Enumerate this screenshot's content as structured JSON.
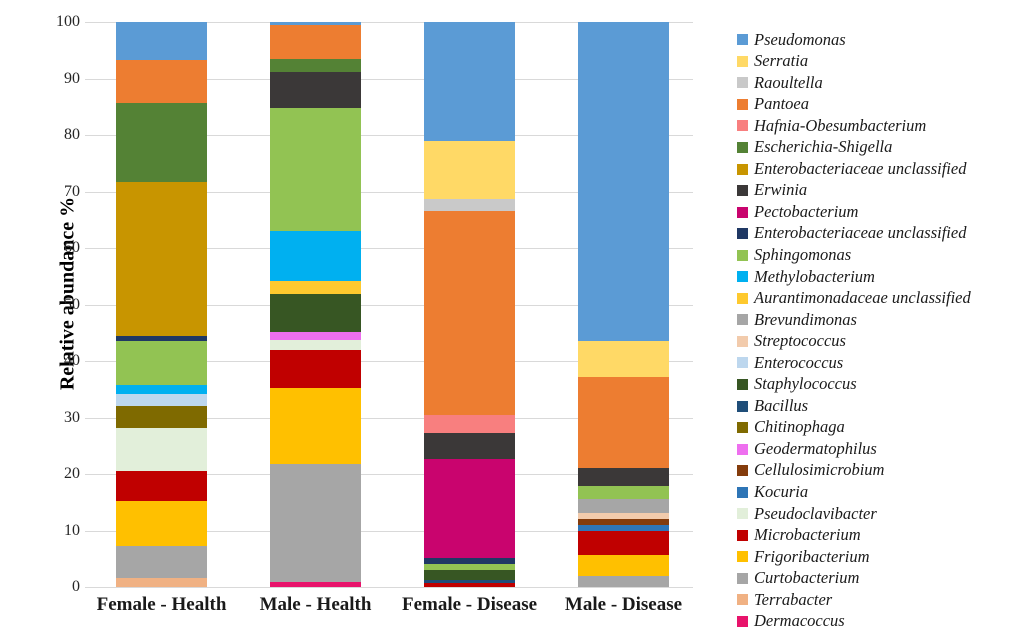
{
  "chart_data": {
    "type": "bar",
    "stacked": true,
    "title": "",
    "xlabel": "",
    "ylabel": "Relative abundance %",
    "ylim": [
      0,
      100
    ],
    "ytick_step": 10,
    "ytick_labels": [
      "0",
      "10",
      "20",
      "30",
      "40",
      "50",
      "60",
      "70",
      "80",
      "90",
      "100"
    ],
    "grid": true,
    "gridline_color": "#d9d9d9",
    "legend_position": "right",
    "categories": [
      "Female - Health",
      "Male - Health",
      "Female - Disease",
      "Male - Disease"
    ],
    "series": [
      {
        "name": "Pseudomonas",
        "color": "#5B9BD5",
        "values": [
          6.7,
          0.6,
          21.1,
          56.4
        ]
      },
      {
        "name": "Serratia",
        "color": "#FFD966",
        "values": [
          0,
          0,
          10.3,
          6.5
        ]
      },
      {
        "name": "Raoultella",
        "color": "#C9C9C9",
        "values": [
          0,
          0,
          2.1,
          0
        ]
      },
      {
        "name": "Pantoea",
        "color": "#ED7D31",
        "values": [
          7.6,
          5.9,
          36.0,
          16.1
        ]
      },
      {
        "name": "Hafnia-Obesumbacterium",
        "color": "#F87F7F",
        "values": [
          0,
          0,
          3.3,
          0
        ]
      },
      {
        "name": "Escherichia-Shigella",
        "color": "#548235",
        "values": [
          14.0,
          2.3,
          0,
          0
        ]
      },
      {
        "name": "Enterobacteriaceae unclassified",
        "color": "#C89500",
        "values": [
          27.2,
          0,
          0,
          0
        ]
      },
      {
        "name": "Erwinia",
        "color": "#3B3838",
        "values": [
          0,
          6.5,
          4.6,
          3.1
        ]
      },
      {
        "name": "Pectobacterium",
        "color": "#C9046E",
        "values": [
          0,
          0,
          17.5,
          0
        ]
      },
      {
        "name": "Enterobacteriaceae unclassified",
        "color": "#1F3864",
        "values": [
          0.9,
          0,
          1.0,
          0
        ]
      },
      {
        "name": "Sphingomonas",
        "color": "#92C353",
        "values": [
          7.8,
          21.7,
          1.1,
          2.4
        ]
      },
      {
        "name": "Methylobacterium",
        "color": "#00B0F0",
        "values": [
          1.6,
          8.9,
          0,
          0
        ]
      },
      {
        "name": "Aurantimonadaceae unclassified",
        "color": "#FEC92E",
        "values": [
          0,
          2.2,
          0,
          0
        ]
      },
      {
        "name": "Brevundimonas",
        "color": "#A6A6A6",
        "values": [
          0,
          0,
          0,
          2.4
        ]
      },
      {
        "name": "Streptococcus",
        "color": "#F2CBAC",
        "values": [
          0,
          0,
          0,
          1.0
        ]
      },
      {
        "name": "Enterococcus",
        "color": "#BDD7EE",
        "values": [
          2.2,
          0,
          0,
          0
        ]
      },
      {
        "name": "Staphylococcus",
        "color": "#375623",
        "values": [
          0,
          6.8,
          1.8,
          0
        ]
      },
      {
        "name": "Bacillus",
        "color": "#1F4E79",
        "values": [
          0,
          0,
          0.5,
          0
        ]
      },
      {
        "name": "Chitinophaga",
        "color": "#7F6A00",
        "values": [
          3.9,
          0,
          0,
          0
        ]
      },
      {
        "name": "Geodermatophilus",
        "color": "#EE6FEF",
        "values": [
          0,
          1.3,
          0,
          0
        ]
      },
      {
        "name": "Cellulosimicrobium",
        "color": "#843C0C",
        "values": [
          0,
          0,
          0,
          1.1
        ]
      },
      {
        "name": "Kocuria",
        "color": "#2E75B6",
        "values": [
          0,
          0,
          0,
          1.0
        ]
      },
      {
        "name": "Pseudoclavibacter",
        "color": "#E2EFDA",
        "values": [
          7.6,
          1.8,
          0,
          0
        ]
      },
      {
        "name": "Microbacterium",
        "color": "#C00000",
        "values": [
          5.3,
          6.8,
          0.7,
          4.3
        ]
      },
      {
        "name": "Frigoribacterium",
        "color": "#FFC000",
        "values": [
          7.9,
          13.5,
          0,
          3.8
        ]
      },
      {
        "name": "Curtobacterium",
        "color": "#A6A6A6",
        "values": [
          5.7,
          20.8,
          0,
          1.9
        ]
      },
      {
        "name": "Terrabacter",
        "color": "#F0B183",
        "values": [
          1.6,
          0,
          0,
          0
        ]
      },
      {
        "name": "Dermacoccus",
        "color": "#E8136B",
        "values": [
          0,
          0.9,
          0,
          0
        ]
      }
    ]
  }
}
